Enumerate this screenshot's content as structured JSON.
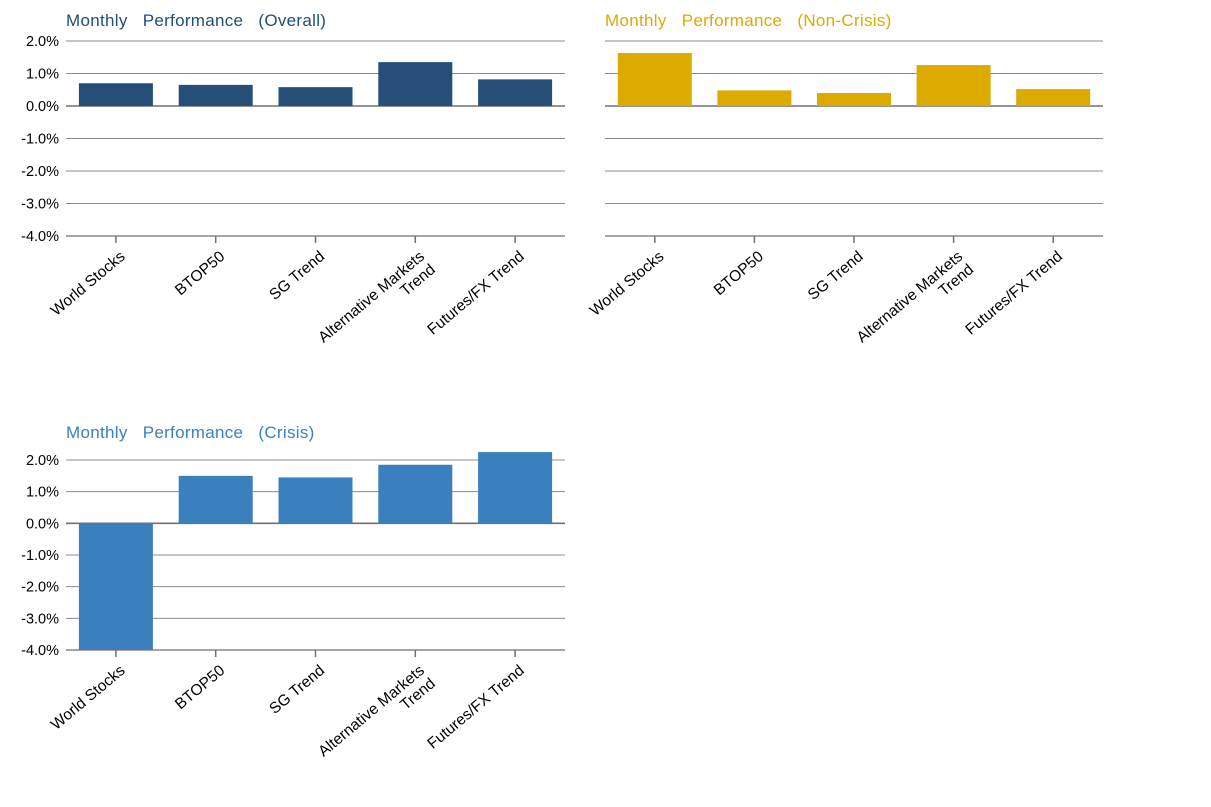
{
  "chart_data": [
    {
      "type": "bar",
      "title": "Monthly   Performance   (Overall)",
      "title_color": "#1F4E79",
      "bar_color": "#264F78",
      "categories": [
        "World Stocks",
        "BTOP50",
        "SG Trend",
        "Alternative Markets|Trend",
        "Futures/FX Trend"
      ],
      "values": [
        0.7,
        0.65,
        0.58,
        1.35,
        0.82
      ],
      "ylim": [
        -4.0,
        2.0
      ],
      "yticks": [
        "2.0%",
        "1.0%",
        "0.0%",
        "-1.0%",
        "-2.0%",
        "-3.0%",
        "-4.0%"
      ],
      "show_ytick_labels": true,
      "grid": true
    },
    {
      "type": "bar",
      "title": "Monthly   Performance   (Non-Crisis)",
      "title_color": "#DDAA00",
      "bar_color": "#DDAA00",
      "categories": [
        "World Stocks",
        "BTOP50",
        "SG Trend",
        "Alternative Markets|Trend",
        "Futures/FX Trend"
      ],
      "values": [
        1.63,
        0.48,
        0.4,
        1.26,
        0.52
      ],
      "ylim": [
        -4.0,
        2.0
      ],
      "yticks": [
        "2.0%",
        "1.0%",
        "0.0%",
        "-1.0%",
        "-2.0%",
        "-3.0%",
        "-4.0%"
      ],
      "show_ytick_labels": false,
      "grid": true
    },
    {
      "type": "bar",
      "title": "Monthly   Performance   (Crisis)",
      "title_color": "#3A80BE",
      "bar_color": "#3A80BE",
      "categories": [
        "World Stocks",
        "BTOP50",
        "SG Trend",
        "Alternative Markets|Trend",
        "Futures/FX Trend"
      ],
      "values": [
        -4.0,
        1.5,
        1.45,
        1.85,
        2.25
      ],
      "ylim": [
        -4.0,
        2.0
      ],
      "yticks": [
        "2.0%",
        "1.0%",
        "0.0%",
        "-1.0%",
        "-2.0%",
        "-3.0%",
        "-4.0%"
      ],
      "show_ytick_labels": true,
      "grid": true
    }
  ]
}
